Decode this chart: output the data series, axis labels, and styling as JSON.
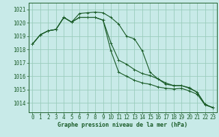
{
  "title": "Graphe pression niveau de la mer (hPa)",
  "background_color": "#c8eae8",
  "grid_color": "#99ccbb",
  "line_color": "#1a5c28",
  "xlim": [
    -0.5,
    23.5
  ],
  "ylim": [
    1013.3,
    1021.5
  ],
  "yticks": [
    1014,
    1015,
    1016,
    1017,
    1018,
    1019,
    1020,
    1021
  ],
  "xticks": [
    0,
    1,
    2,
    3,
    4,
    5,
    6,
    7,
    8,
    9,
    10,
    11,
    12,
    13,
    14,
    15,
    16,
    17,
    18,
    19,
    20,
    21,
    22,
    23
  ],
  "series": [
    [
      1018.4,
      1019.1,
      1019.4,
      1019.5,
      1020.4,
      1020.05,
      1020.7,
      1020.75,
      1020.8,
      1020.75,
      1020.4,
      1019.9,
      1019.0,
      1018.8,
      1017.9,
      1016.3,
      1015.8,
      1015.4,
      1015.3,
      1015.3,
      1015.15,
      1014.8,
      1013.9,
      1013.65
    ],
    [
      1018.4,
      1019.1,
      1019.4,
      1019.5,
      1020.4,
      1020.05,
      1020.4,
      1020.4,
      1020.4,
      1020.2,
      1018.5,
      1017.2,
      1016.9,
      1016.5,
      1016.2,
      1016.05,
      1015.8,
      1015.5,
      1015.3,
      1015.3,
      1015.1,
      1014.8,
      1013.9,
      1013.65
    ],
    [
      1018.4,
      1019.1,
      1019.4,
      1019.5,
      1020.4,
      1020.05,
      1020.4,
      1020.4,
      1020.4,
      1020.2,
      1017.9,
      1016.3,
      1016.0,
      1015.7,
      1015.5,
      1015.4,
      1015.2,
      1015.1,
      1015.05,
      1015.1,
      1014.9,
      1014.65,
      1013.85,
      1013.65
    ]
  ],
  "ylabel_fontsize": 5.5,
  "xlabel_fontsize": 5.5,
  "title_fontsize": 6.0,
  "linewidth": 0.85,
  "markersize": 2.8
}
